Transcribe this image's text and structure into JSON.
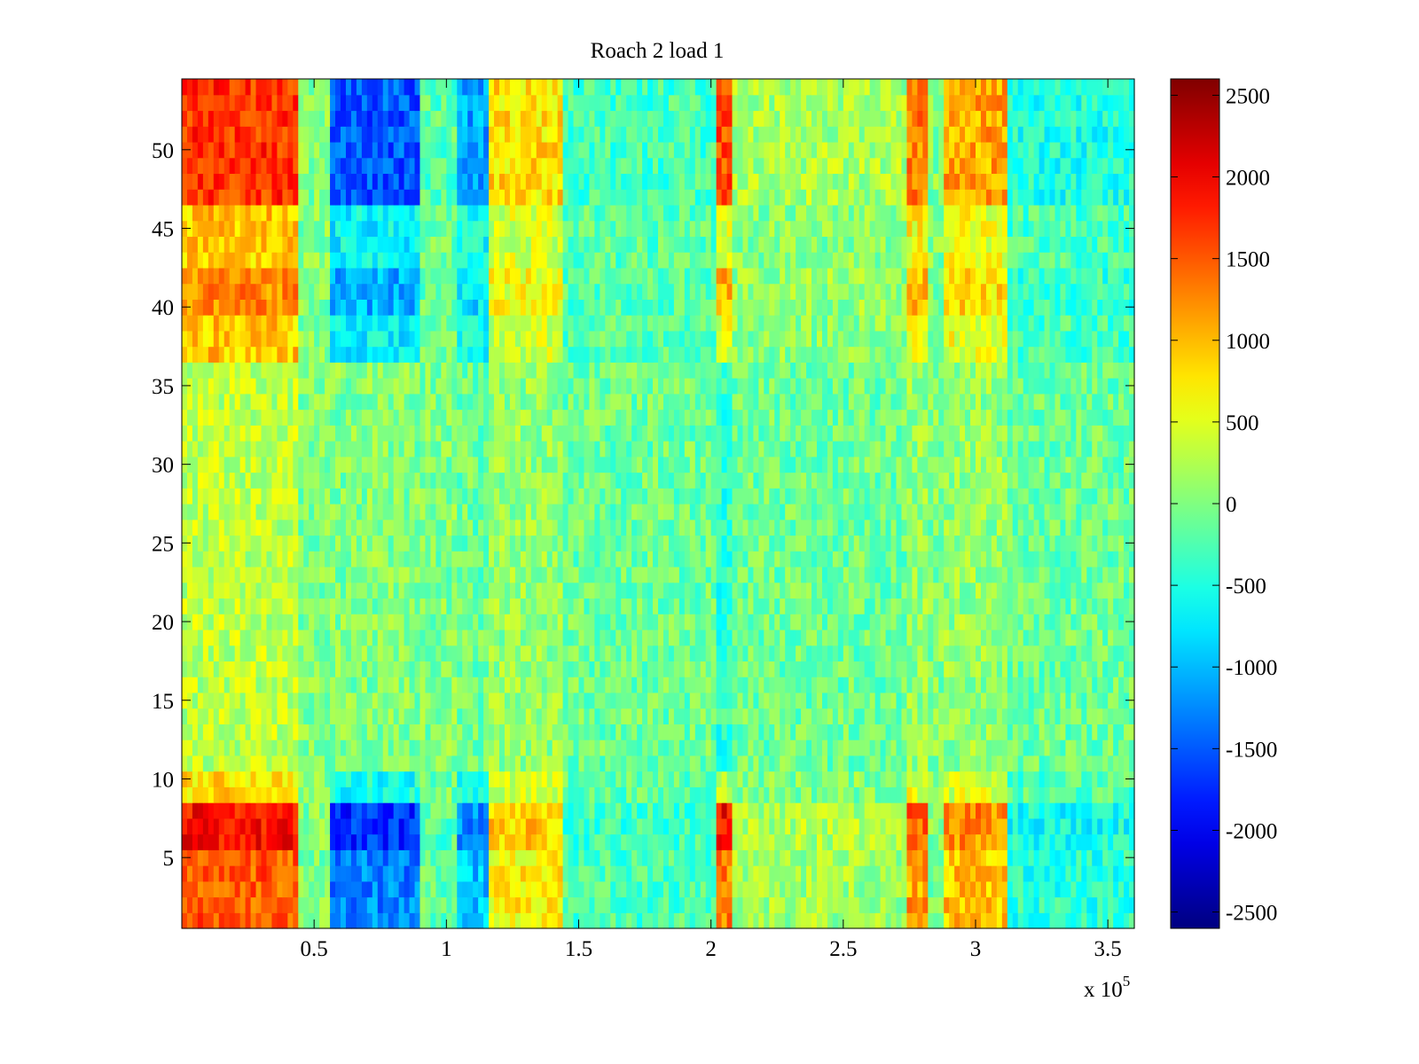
{
  "chart_data": {
    "type": "heatmap",
    "title": "Roach 2 load 1",
    "xlabel": "",
    "ylabel": "",
    "x_exponent_label": "x 10",
    "x_exponent_power": "5",
    "xlim": [
      0,
      3.6
    ],
    "ylim": [
      0.5,
      54.5
    ],
    "x_ticks": [
      0.5,
      1,
      1.5,
      2,
      2.5,
      3,
      3.5
    ],
    "x_tick_labels": [
      "0.5",
      "1",
      "1.5",
      "2",
      "2.5",
      "3",
      "3.5"
    ],
    "y_ticks": [
      5,
      10,
      15,
      20,
      25,
      30,
      35,
      40,
      45,
      50
    ],
    "y_tick_labels": [
      "5",
      "10",
      "15",
      "20",
      "25",
      "30",
      "35",
      "40",
      "45",
      "50"
    ],
    "colorbar": {
      "colormap": "jet",
      "range": [
        -2600,
        2600
      ],
      "ticks": [
        2500,
        2000,
        1500,
        1000,
        500,
        0,
        -500,
        -1000,
        -1500,
        -2000,
        -2500
      ],
      "tick_labels": [
        "2500",
        "2000",
        "1500",
        "1000",
        "500",
        "0",
        "-500",
        "-1000",
        "-1500",
        "-2000",
        "-2500"
      ]
    },
    "grid": false,
    "column_bands": [
      {
        "x_start": 0.0,
        "x_end": 0.45,
        "edge_value": 1700,
        "center_value": 300
      },
      {
        "x_start": 0.45,
        "x_end": 0.56,
        "edge_value": 0,
        "center_value": 0
      },
      {
        "x_start": 0.56,
        "x_end": 0.9,
        "edge_value": -1500,
        "center_value": 0
      },
      {
        "x_start": 0.9,
        "x_end": 1.05,
        "edge_value": -200,
        "center_value": 0
      },
      {
        "x_start": 1.05,
        "x_end": 1.17,
        "edge_value": -1100,
        "center_value": -100
      },
      {
        "x_start": 1.17,
        "x_end": 1.45,
        "edge_value": 800,
        "center_value": 100
      },
      {
        "x_start": 1.45,
        "x_end": 2.03,
        "edge_value": -300,
        "center_value": -100
      },
      {
        "x_start": 2.03,
        "x_end": 2.09,
        "edge_value": 1600,
        "center_value": -400
      },
      {
        "x_start": 2.09,
        "x_end": 2.75,
        "edge_value": 200,
        "center_value": -100
      },
      {
        "x_start": 2.75,
        "x_end": 2.82,
        "edge_value": 1300,
        "center_value": 100
      },
      {
        "x_start": 2.82,
        "x_end": 2.88,
        "edge_value": 0,
        "center_value": 0
      },
      {
        "x_start": 2.88,
        "x_end": 3.12,
        "edge_value": 1100,
        "center_value": 100
      },
      {
        "x_start": 3.12,
        "x_end": 3.6,
        "edge_value": -500,
        "center_value": -100
      }
    ],
    "edge_row_ranges": [
      [
        1,
        10
      ],
      [
        37,
        54
      ]
    ]
  }
}
